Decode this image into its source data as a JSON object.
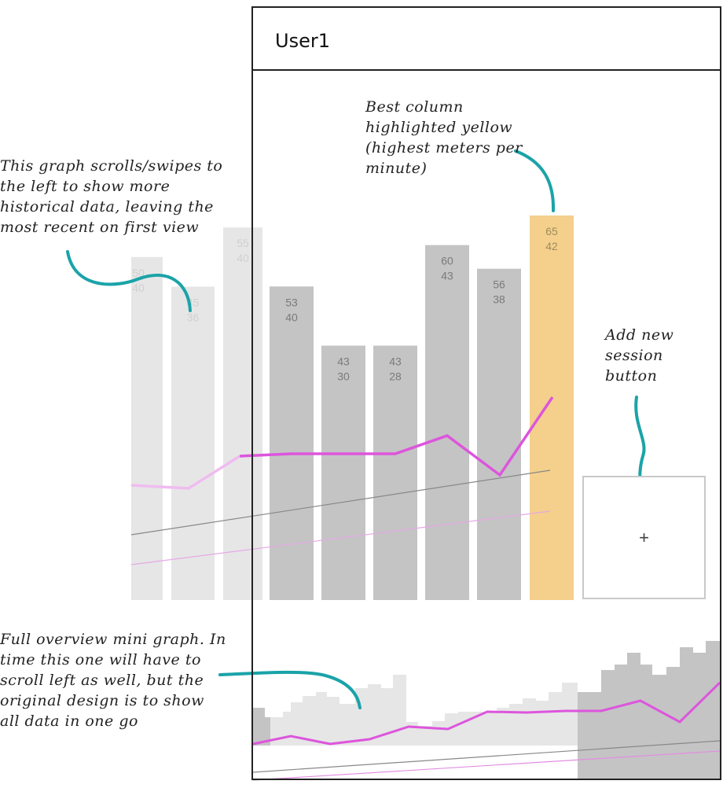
{
  "header": {
    "title": "User1"
  },
  "add_button": {
    "label": "+"
  },
  "annotations": {
    "scroll_note": "This graph scrolls/swipes to the left to show more historical data, leaving the most recent on first view",
    "best_column_note": "Best column highlighted yellow (highest meters per minute)",
    "add_session_note": "Add new session button",
    "mini_graph_note": "Full overview mini graph. In time this one will have to scroll left as well, but the original design is to show all data in one go"
  },
  "colors": {
    "bar": "#c4c4c4",
    "bar_faded": "#e6e6e6",
    "best_bar": "#f4d08c",
    "line": "#dd55dd",
    "line_faded": "#f0bcf0",
    "trend": "#888888",
    "trend_faded": "#dddddd",
    "arrow": "#1aa3a8"
  },
  "chart_data": [
    {
      "type": "bar",
      "bars": [
        {
          "top": "50",
          "bottom": "40",
          "value": 50,
          "faded": true,
          "best": false
        },
        {
          "top": "45",
          "bottom": "36",
          "value": 45,
          "faded": true,
          "best": false
        },
        {
          "top": "55",
          "bottom": "40",
          "value": 55,
          "faded": true,
          "best": false
        },
        {
          "top": "53",
          "bottom": "40",
          "value": 53,
          "faded": false,
          "best": false
        },
        {
          "top": "43",
          "bottom": "30",
          "value": 43,
          "faded": false,
          "best": false
        },
        {
          "top": "43",
          "bottom": "28",
          "value": 43,
          "faded": false,
          "best": false
        },
        {
          "top": "60",
          "bottom": "43",
          "value": 60,
          "faded": false,
          "best": false
        },
        {
          "top": "56",
          "bottom": "38",
          "value": 56,
          "faded": false,
          "best": false
        },
        {
          "top": "65",
          "bottom": "42",
          "value": 65,
          "faded": false,
          "best": true
        }
      ],
      "line_values": [
        40,
        40,
        47,
        47.5,
        47.5,
        47.5,
        50,
        42,
        60
      ]
    }
  ]
}
